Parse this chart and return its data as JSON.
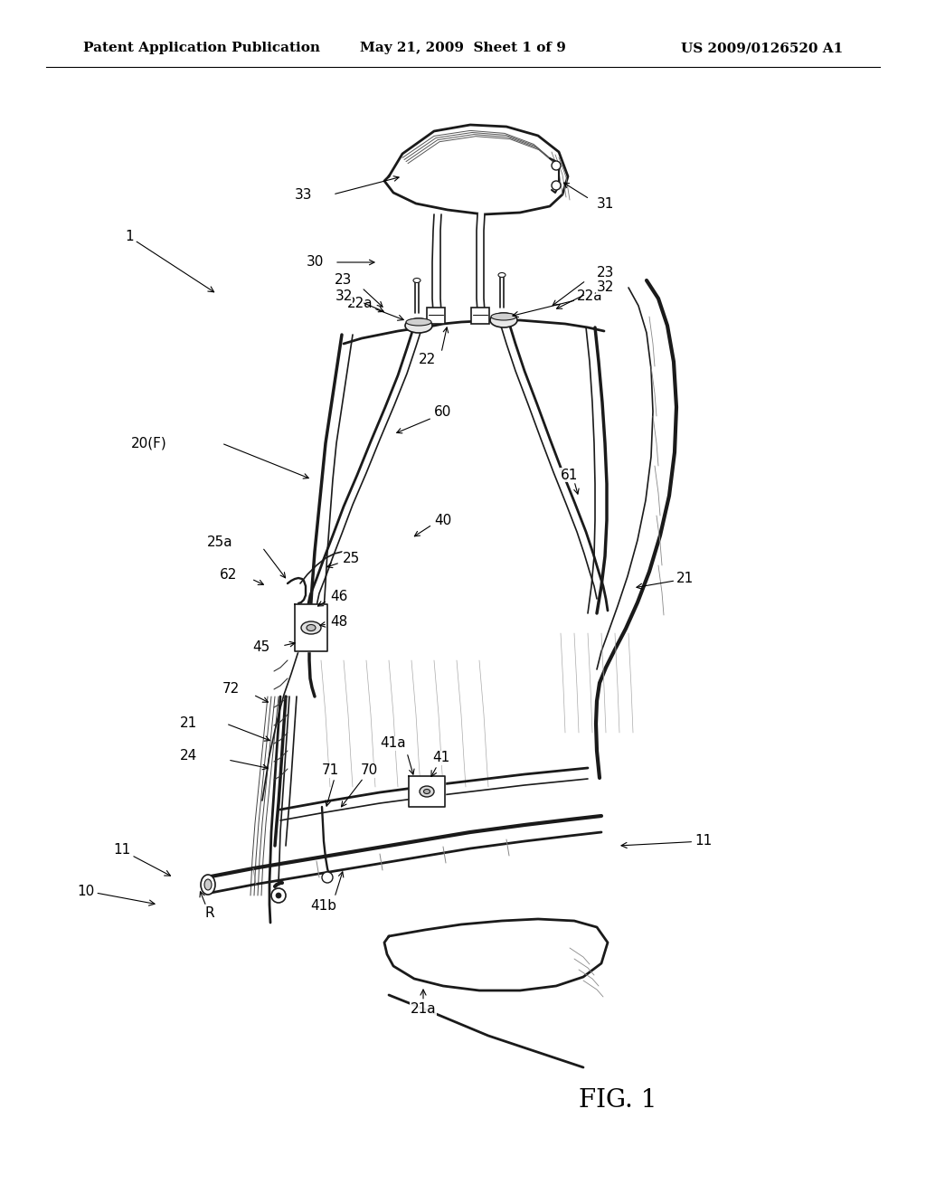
{
  "background_color": "#ffffff",
  "header_left": "Patent Application Publication",
  "header_center": "May 21, 2009  Sheet 1 of 9",
  "header_right": "US 2009/0126520 A1",
  "figure_label": "FIG. 1",
  "header_fontsize": 11,
  "fig_label_fontsize": 20
}
